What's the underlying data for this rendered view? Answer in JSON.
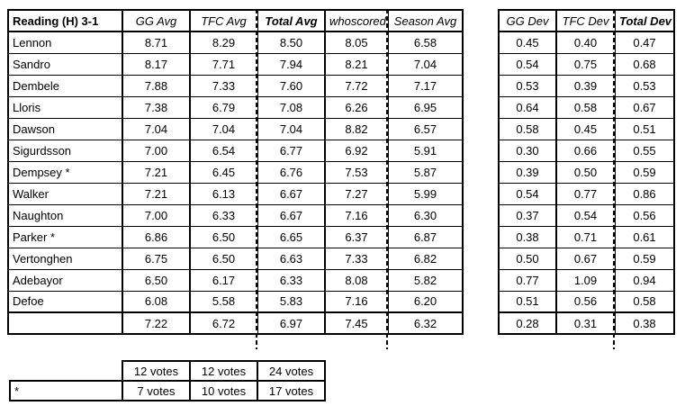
{
  "colors": {
    "border": "#000000",
    "background": "#ffffff"
  },
  "main_table": {
    "title": "Reading (H) 3-1",
    "columns": [
      "GG Avg",
      "TFC Avg",
      "Total Avg",
      "whoscored",
      "Season Avg"
    ],
    "rows": [
      {
        "name": "Lennon",
        "values": [
          "8.71",
          "8.29",
          "8.50",
          "8.05",
          "6.58"
        ]
      },
      {
        "name": "Sandro",
        "values": [
          "8.17",
          "7.71",
          "7.94",
          "8.21",
          "7.04"
        ]
      },
      {
        "name": "Dembele",
        "values": [
          "7.88",
          "7.33",
          "7.60",
          "7.72",
          "7.17"
        ]
      },
      {
        "name": "Lloris",
        "values": [
          "7.38",
          "6.79",
          "7.08",
          "6.26",
          "6.95"
        ]
      },
      {
        "name": "Dawson",
        "values": [
          "7.04",
          "7.04",
          "7.04",
          "8.82",
          "6.57"
        ]
      },
      {
        "name": "Sigurdsson",
        "values": [
          "7.00",
          "6.54",
          "6.77",
          "6.92",
          "5.91"
        ]
      },
      {
        "name": "Dempsey *",
        "values": [
          "7.21",
          "6.45",
          "6.76",
          "7.53",
          "5.87"
        ]
      },
      {
        "name": "Walker",
        "values": [
          "7.21",
          "6.13",
          "6.67",
          "7.27",
          "5.99"
        ]
      },
      {
        "name": "Naughton",
        "values": [
          "7.00",
          "6.33",
          "6.67",
          "7.16",
          "6.30"
        ]
      },
      {
        "name": "Parker *",
        "values": [
          "6.86",
          "6.50",
          "6.65",
          "6.37",
          "6.87"
        ]
      },
      {
        "name": "Vertonghen",
        "values": [
          "6.75",
          "6.50",
          "6.63",
          "7.33",
          "6.82"
        ]
      },
      {
        "name": "Adebayor",
        "values": [
          "6.50",
          "6.17",
          "6.33",
          "8.08",
          "5.82"
        ]
      },
      {
        "name": "Defoe",
        "values": [
          "6.08",
          "5.58",
          "5.83",
          "7.16",
          "6.20"
        ]
      }
    ],
    "totals": {
      "name": "",
      "values": [
        "7.22",
        "6.72",
        "6.97",
        "7.45",
        "6.32"
      ]
    }
  },
  "dev_table": {
    "columns": [
      "GG Dev",
      "TFC Dev",
      "Total Dev"
    ],
    "rows": [
      [
        "0.45",
        "0.40",
        "0.47"
      ],
      [
        "0.54",
        "0.75",
        "0.68"
      ],
      [
        "0.53",
        "0.39",
        "0.53"
      ],
      [
        "0.64",
        "0.58",
        "0.67"
      ],
      [
        "0.58",
        "0.45",
        "0.51"
      ],
      [
        "0.30",
        "0.66",
        "0.55"
      ],
      [
        "0.39",
        "0.50",
        "0.59"
      ],
      [
        "0.54",
        "0.77",
        "0.86"
      ],
      [
        "0.37",
        "0.54",
        "0.56"
      ],
      [
        "0.38",
        "0.71",
        "0.61"
      ],
      [
        "0.50",
        "0.67",
        "0.59"
      ],
      [
        "0.77",
        "1.09",
        "0.94"
      ],
      [
        "0.51",
        "0.56",
        "0.58"
      ]
    ],
    "totals": [
      "0.28",
      "0.31",
      "0.38"
    ]
  },
  "votes_table": {
    "rows": [
      {
        "label": "",
        "values": [
          "12 votes",
          "12 votes",
          "24 votes"
        ]
      },
      {
        "label": "*",
        "values": [
          "7 votes",
          "10 votes",
          "17 votes"
        ]
      }
    ]
  }
}
